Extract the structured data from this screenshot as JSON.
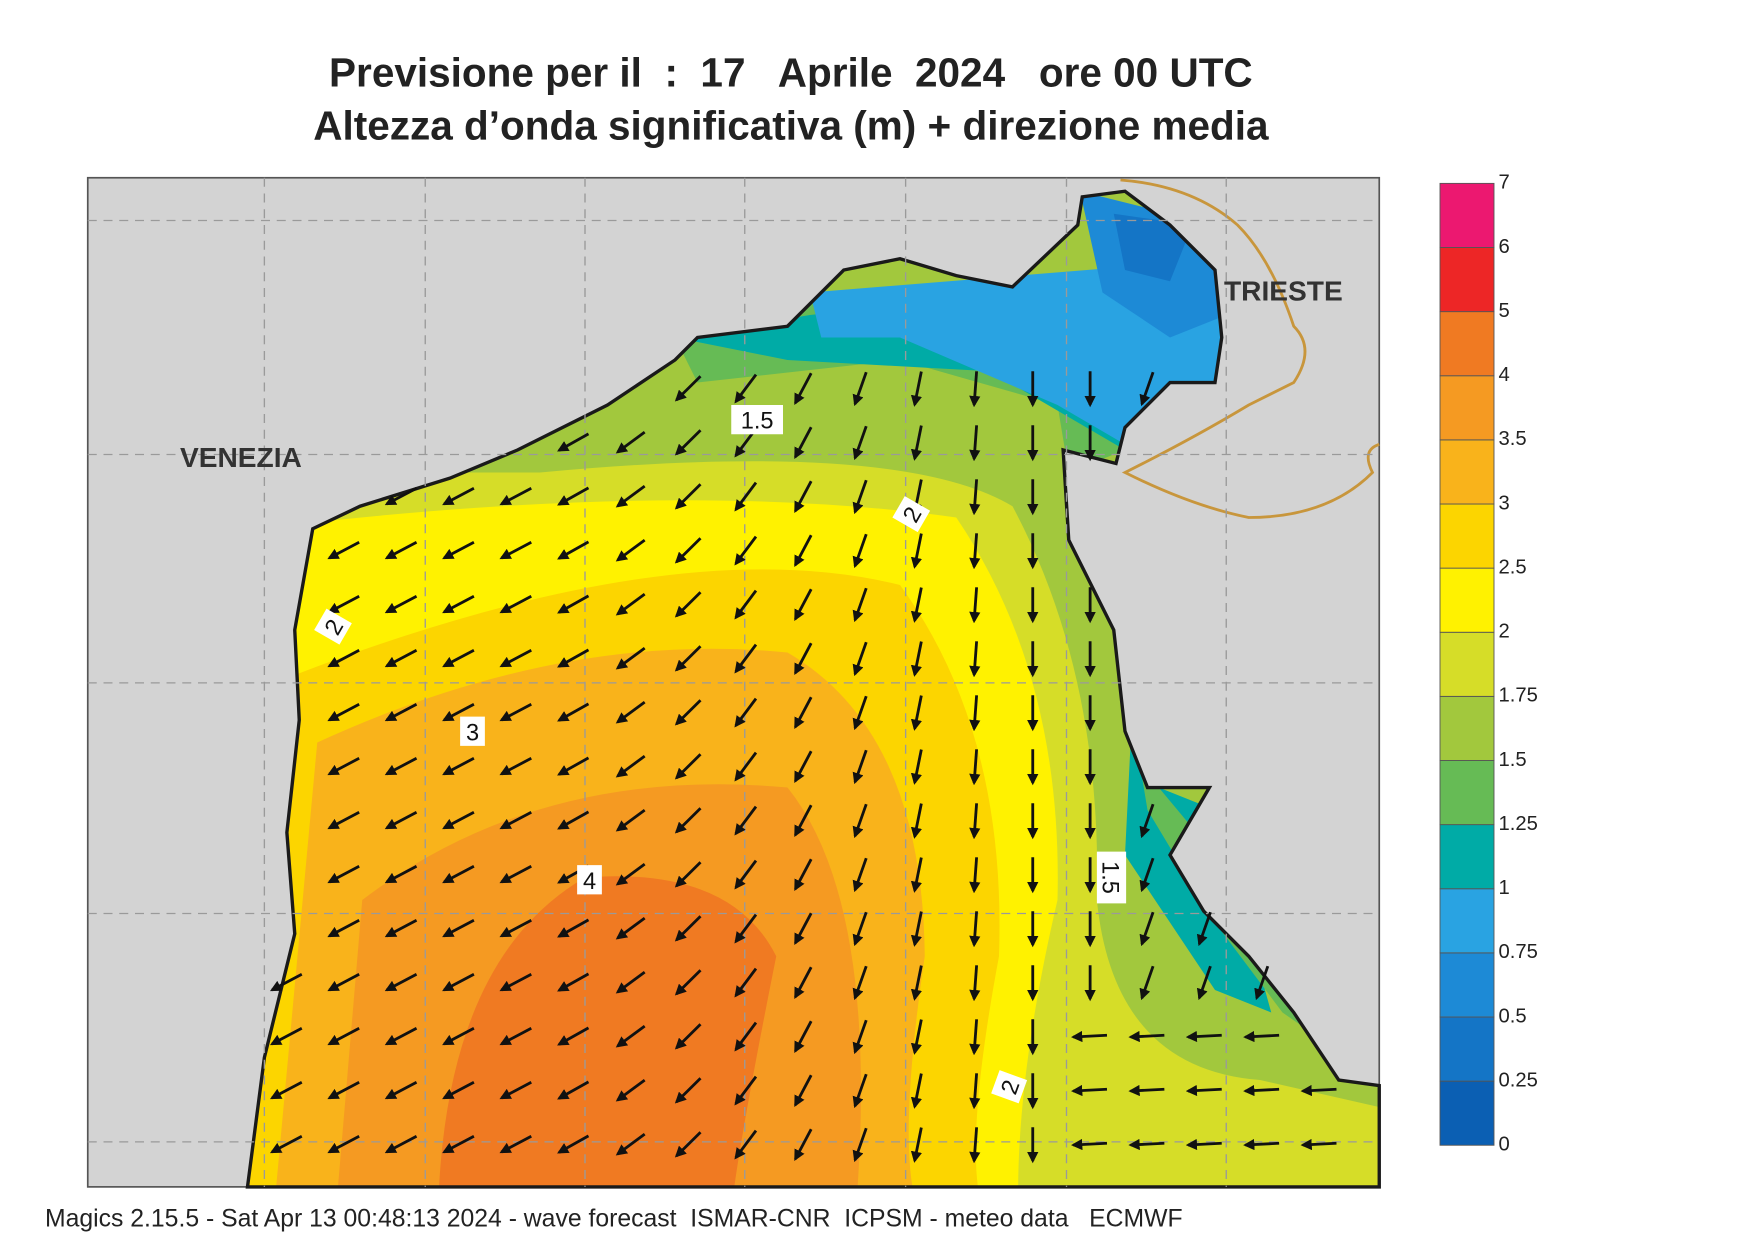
{
  "header": {
    "title_line1": "Previsione per il  :  17   Aprile  2024   ore 00 UTC",
    "title_line2": "Altezza d’onda significativa (m) + direzione media"
  },
  "map": {
    "place_labels": [
      "VENEZIA",
      "TRIESTE"
    ],
    "contour_labels": [
      "1.5",
      "2",
      "2",
      "3",
      "4",
      "1.5",
      "2"
    ]
  },
  "legend": {
    "ticks": [
      0,
      0.25,
      0.5,
      0.75,
      1,
      1.25,
      1.5,
      1.75,
      2,
      2.5,
      3,
      3.5,
      4,
      5,
      6,
      7
    ],
    "colors": [
      "#0b5fb3",
      "#1475c6",
      "#1d8ad6",
      "#29a3e2",
      "#00aba6",
      "#66bb55",
      "#a2c83d",
      "#d6dd28",
      "#fff200",
      "#fcd500",
      "#f9b31b",
      "#f59a22",
      "#f07a22",
      "#ed2626",
      "#ec1870"
    ]
  },
  "footer": "Magics 2.15.5 - Sat Apr 13 00:48:13 2024 - wave forecast  ISMAR-CNR  ICPSM - meteo data   ECMWF"
}
